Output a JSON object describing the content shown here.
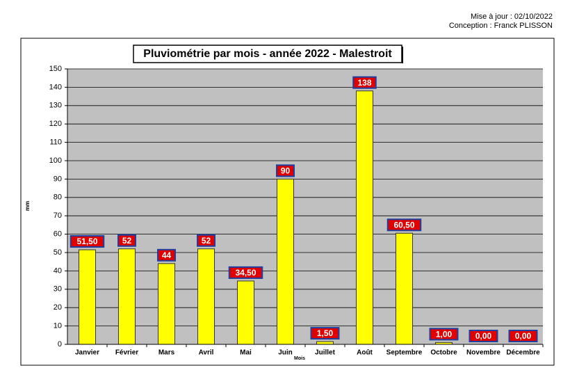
{
  "header": {
    "update": "Mise à jour : 02/10/2022",
    "author": "Conception : Franck PLISSON"
  },
  "chart_data": {
    "type": "bar",
    "title": "Pluviométrie par mois - année 2022 - Malestroit",
    "x_label": "Mois",
    "y_label": "mm",
    "categories": [
      "Janvier",
      "Février",
      "Mars",
      "Avril",
      "Mai",
      "Juin",
      "Juillet",
      "Août",
      "Septembre",
      "Octobre",
      "Novembre",
      "Décembre"
    ],
    "values": [
      51.5,
      52,
      44,
      52,
      34.5,
      90,
      1.5,
      138,
      60.5,
      1,
      0,
      0
    ],
    "value_labels": [
      "51,50",
      "52",
      "44",
      "52",
      "34,50",
      "90",
      "1,50",
      "138",
      "60,50",
      "1,00",
      "0,00",
      "0,00"
    ],
    "color": "#ffff00",
    "ylim": [
      0,
      150
    ],
    "yticks": [
      0,
      10,
      20,
      30,
      40,
      50,
      60,
      70,
      80,
      90,
      100,
      110,
      120,
      130,
      140,
      150
    ],
    "grid": true
  }
}
